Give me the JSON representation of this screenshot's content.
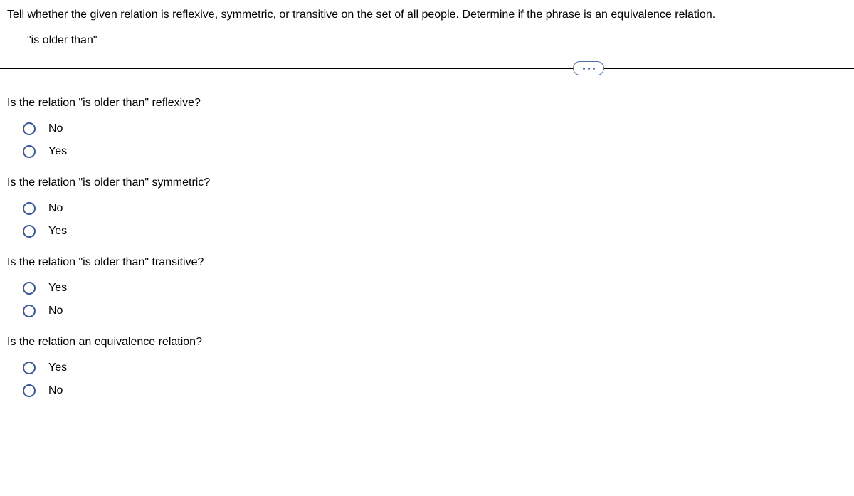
{
  "colors": {
    "text": "#000000",
    "background": "#ffffff",
    "radio_border": "#3b5998",
    "pill_border": "#4a6ea9",
    "divider": "#000000"
  },
  "header": {
    "question_text": "Tell whether the given relation is reflexive, symmetric, or transitive on the set of all people. Determine if the phrase is an equivalence relation.",
    "quoted_relation": "\"is older than\""
  },
  "questions": [
    {
      "prompt": "Is the relation \"is older than\" reflexive?",
      "options": [
        "No",
        "Yes"
      ]
    },
    {
      "prompt": "Is the relation \"is older than\" symmetric?",
      "options": [
        "No",
        "Yes"
      ]
    },
    {
      "prompt": "Is the relation \"is older than\" transitive?",
      "options": [
        "Yes",
        "No"
      ]
    },
    {
      "prompt": "Is the relation an equivalence relation?",
      "options": [
        "Yes",
        "No"
      ]
    }
  ]
}
